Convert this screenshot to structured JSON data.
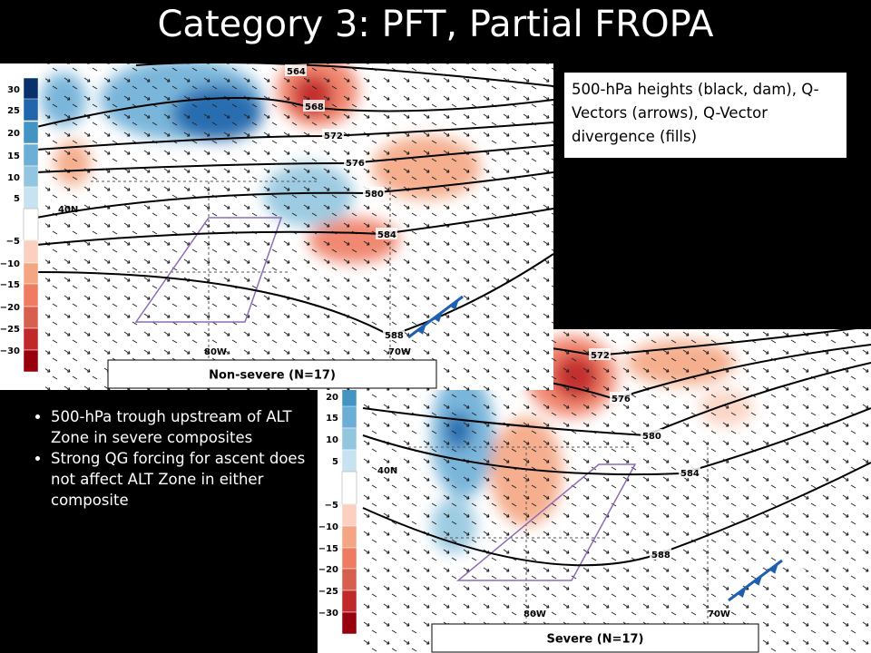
{
  "title": "Category 3: PFT, Partial FROPA",
  "caption": "500-hPa heights (black, dam), Q-Vectors (arrows), Q-Vector divergence (fills)",
  "bullets": [
    "500-hPa trough upstream of ALT Zone in severe composites",
    "Strong QG forcing for ascent does not affect ALT Zone in either composite"
  ],
  "maps": [
    {
      "label": "Non-severe (N=17)",
      "colorbar": {
        "positive": [
          "30",
          "25",
          "20",
          "15",
          "10",
          "5"
        ],
        "negative": [
          "−5",
          "−10",
          "−15",
          "−20",
          "−25",
          "−30"
        ]
      },
      "contours": [
        "564",
        "568",
        "572",
        "576",
        "580",
        "584",
        "588"
      ],
      "lat_label": "40N",
      "lon_labels": [
        "80W",
        "70W"
      ]
    },
    {
      "label": "Severe (N=17)",
      "colorbar": {
        "positive": [
          "20",
          "15",
          "10",
          "5"
        ],
        "negative": [
          "−5",
          "−10",
          "−15",
          "−20",
          "−25",
          "−30"
        ]
      },
      "contours": [
        "572",
        "576",
        "580",
        "584",
        "588"
      ],
      "lat_label": "40N",
      "lon_labels": [
        "80W",
        "70W"
      ]
    }
  ]
}
